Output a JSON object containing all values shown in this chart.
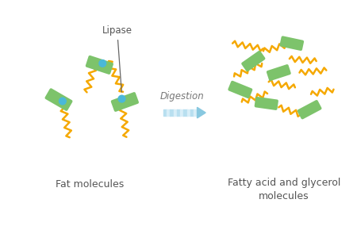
{
  "background_color": "#ffffff",
  "title_left": "Fat molecules",
  "title_right": "Fatty acid and glycerol\nmolecules",
  "label_lipase": "Lipase",
  "label_digestion": "Digestion",
  "enzyme_color": "#7dc36b",
  "chain_color": "#f5a800",
  "dot_color": "#4ab8d8",
  "text_color": "#555555"
}
